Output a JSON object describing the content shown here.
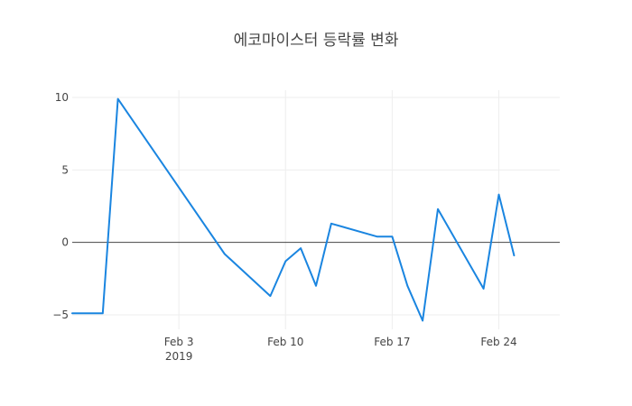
{
  "chart_data": {
    "type": "line",
    "title": "에코마이스터 등락률 변화",
    "xlabel": "",
    "ylabel": "",
    "x_range": [
      "2019-01-27",
      "2019-02-28"
    ],
    "ylim": [
      -6,
      10.5
    ],
    "grid": true,
    "zero_line": true,
    "x_ticks": [
      {
        "date": "2019-02-03",
        "label": "Feb 3",
        "sublabel": "2019"
      },
      {
        "date": "2019-02-10",
        "label": "Feb 10",
        "sublabel": ""
      },
      {
        "date": "2019-02-17",
        "label": "Feb 17",
        "sublabel": ""
      },
      {
        "date": "2019-02-24",
        "label": "Feb 24",
        "sublabel": ""
      }
    ],
    "y_ticks": [
      {
        "value": 10,
        "label": "10"
      },
      {
        "value": 5,
        "label": "5"
      },
      {
        "value": 0,
        "label": "0"
      },
      {
        "value": -5,
        "label": "−5"
      }
    ],
    "series": [
      {
        "color": "#1f77b4",
        "points": [
          {
            "x": "2019-01-27",
            "y": -4.9
          },
          {
            "x": "2019-01-29",
            "y": -4.9
          },
          {
            "x": "2019-01-30",
            "y": 9.9
          },
          {
            "x": "2019-02-06",
            "y": -0.8
          },
          {
            "x": "2019-02-09",
            "y": -3.7
          },
          {
            "x": "2019-02-10",
            "y": -1.3
          },
          {
            "x": "2019-02-11",
            "y": -0.4
          },
          {
            "x": "2019-02-12",
            "y": -3.0
          },
          {
            "x": "2019-02-13",
            "y": 1.3
          },
          {
            "x": "2019-02-16",
            "y": 0.4
          },
          {
            "x": "2019-02-17",
            "y": 0.4
          },
          {
            "x": "2019-02-18",
            "y": -3.0
          },
          {
            "x": "2019-02-19",
            "y": -5.4
          },
          {
            "x": "2019-02-20",
            "y": 2.3
          },
          {
            "x": "2019-02-23",
            "y": -3.2
          },
          {
            "x": "2019-02-24",
            "y": 3.3
          },
          {
            "x": "2019-02-25",
            "y": -0.9
          }
        ]
      }
    ]
  }
}
